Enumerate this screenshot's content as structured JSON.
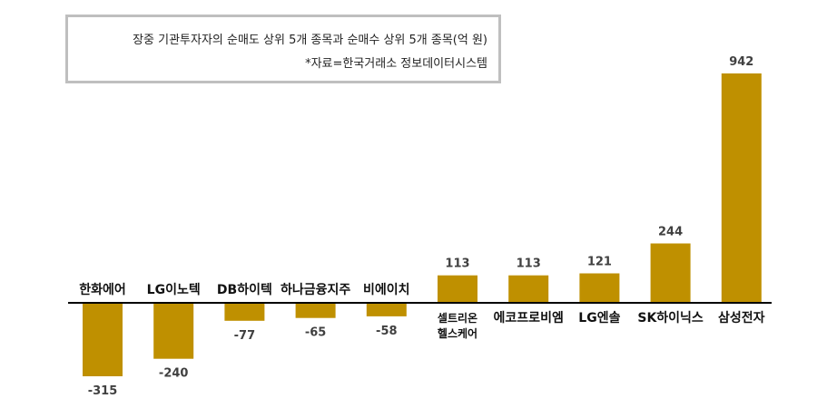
{
  "note": {
    "line1": "장중 기관투자자의 순매도 상위 5개 종목과 순매수 상위 5개 종목(억 원)",
    "line2": "*자료=한국거래소 정보데이터시스템"
  },
  "colors": {
    "bar": "#BF9000",
    "axis": "#000000"
  },
  "chart_data": {
    "type": "bar",
    "title": "장중 기관투자자의 순매도 상위 5개 종목과 순매수 상위 5개 종목(억 원)",
    "source": "*자료=한국거래소 정보데이터시스템",
    "categories": [
      [
        "한화에어"
      ],
      [
        "LG이노텍"
      ],
      [
        "DB하이텍"
      ],
      [
        "하나금융지주"
      ],
      [
        "비에이치"
      ],
      [
        "셀트리온",
        "헬스케어"
      ],
      [
        "에코프로비엠"
      ],
      [
        "LG엔솔"
      ],
      [
        "SK하이닉스"
      ],
      [
        "삼성전자"
      ]
    ],
    "values": [
      -315,
      -240,
      -77,
      -65,
      -58,
      113,
      113,
      121,
      244,
      942
    ],
    "ylim": [
      -360,
      960
    ],
    "grid": false,
    "legend": "none"
  }
}
